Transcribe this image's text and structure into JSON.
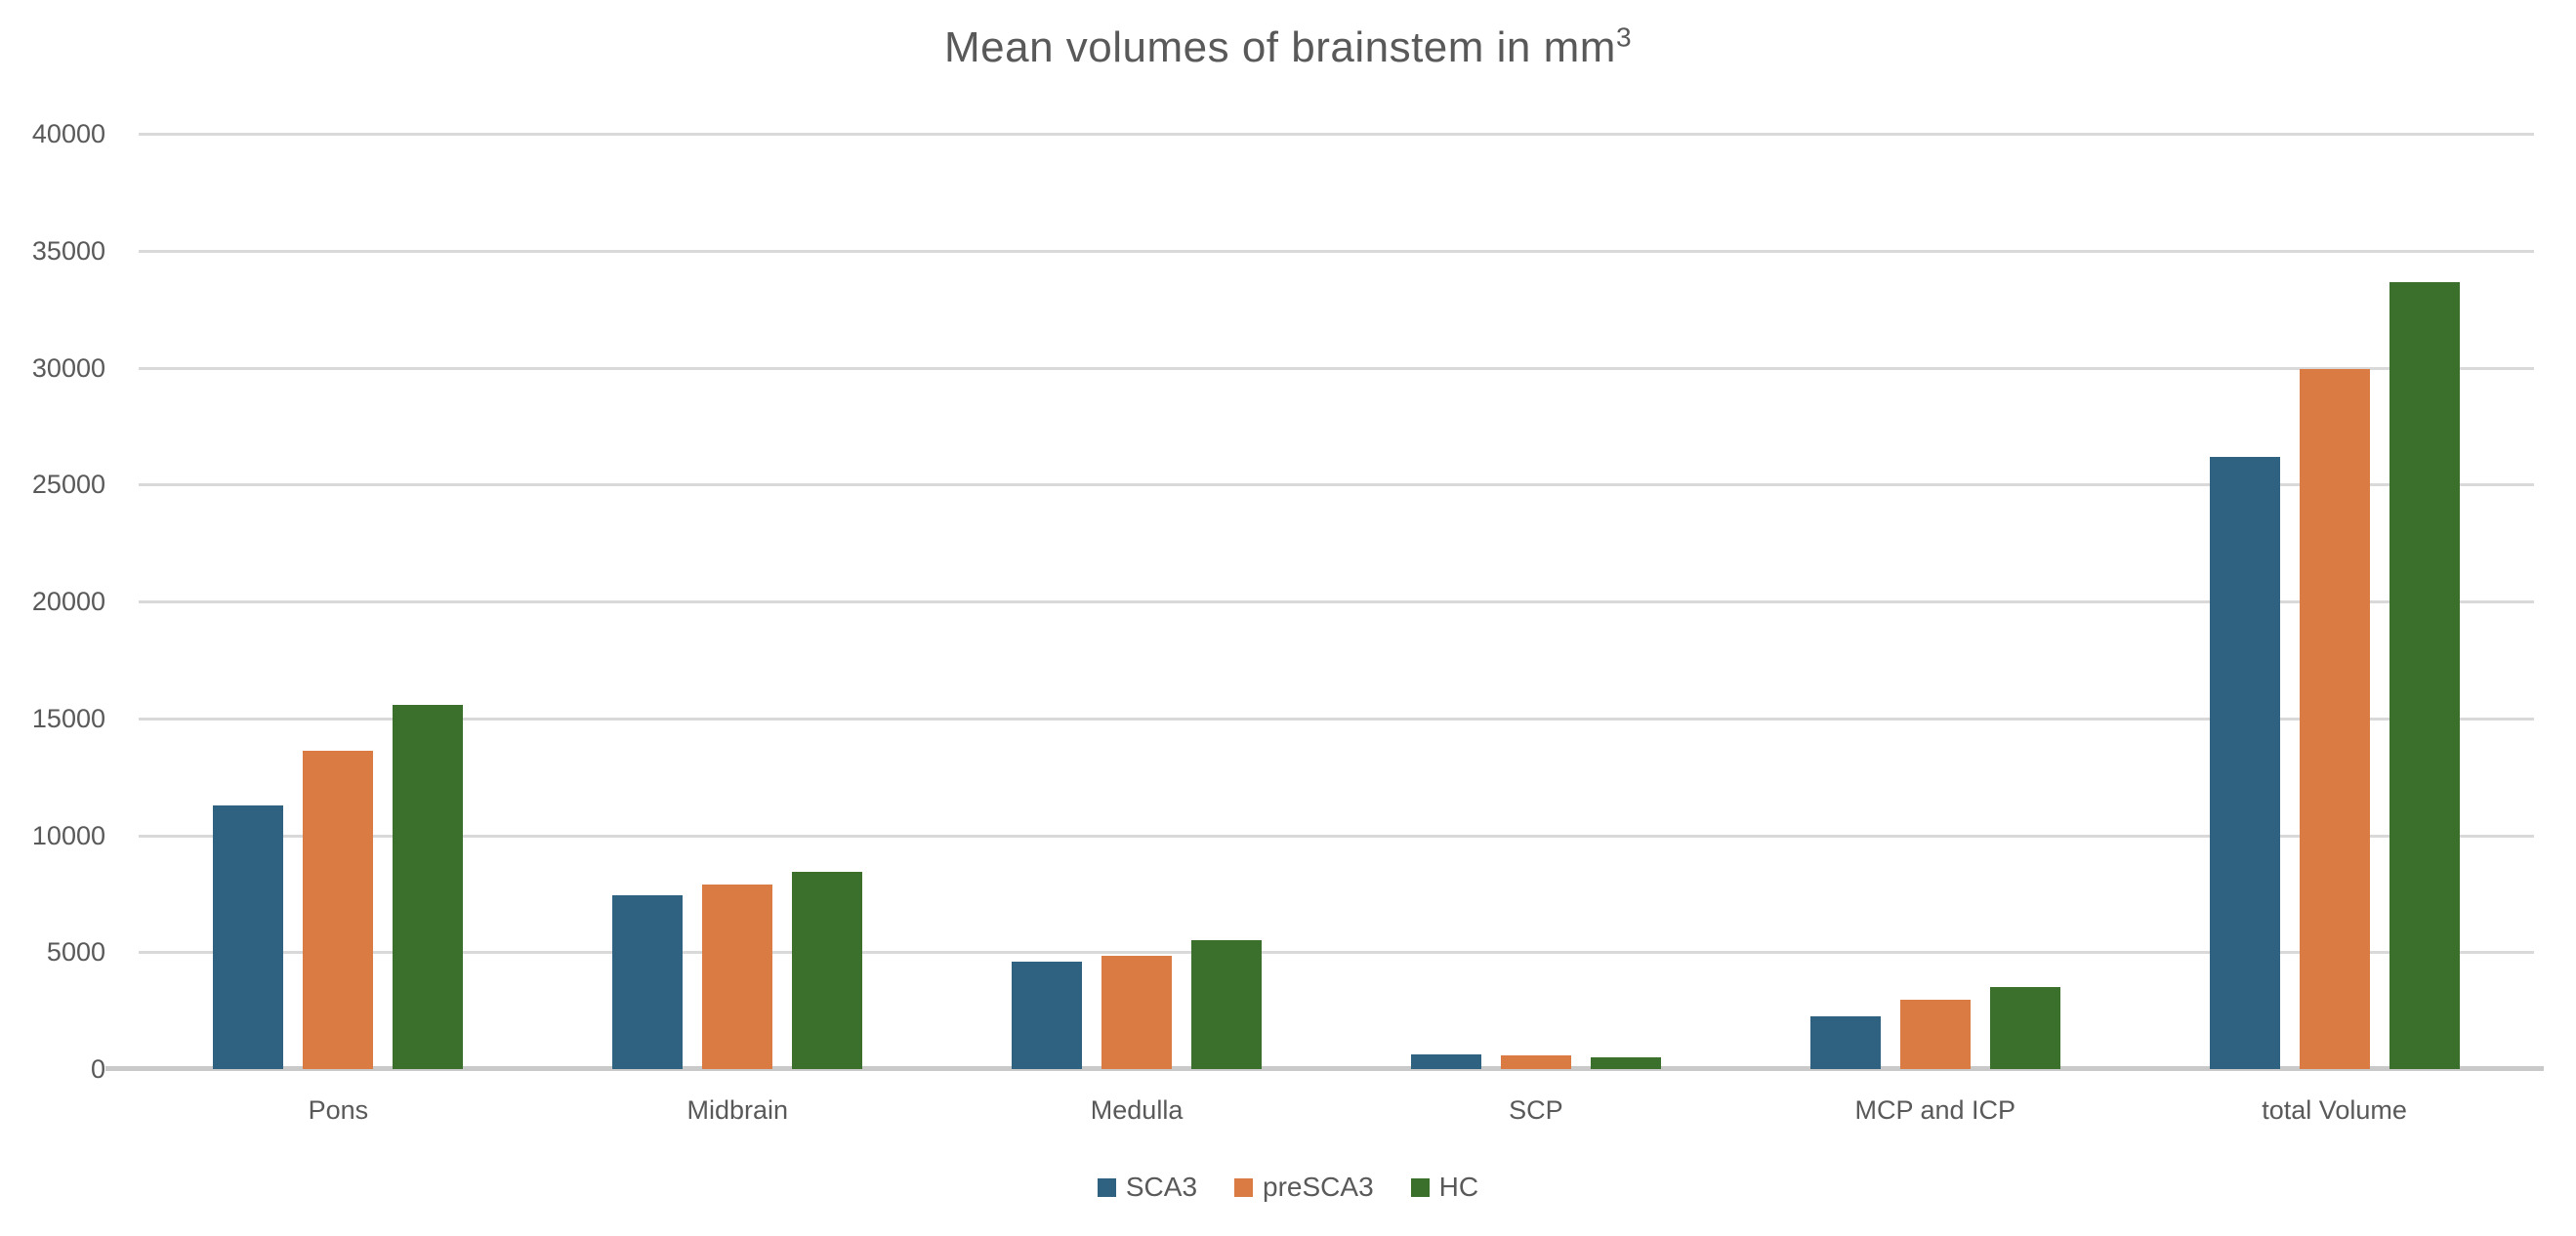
{
  "chart_data": {
    "type": "bar",
    "title": "Mean volumes of brainstem in mm³",
    "title_prefix": "Mean volumes of brainstem in mm",
    "title_superscript": "3",
    "categories": [
      "Pons",
      "Midbrain",
      "Medulla",
      "SCP",
      "MCP and ICP",
      "total Volume"
    ],
    "series": [
      {
        "name": "SCA3",
        "color": "#2e6280",
        "values": [
          11270,
          7440,
          4590,
          630,
          2270,
          26200
        ]
      },
      {
        "name": "preSCA3",
        "color": "#d97b42",
        "values": [
          13610,
          7900,
          4840,
          580,
          2950,
          29950
        ]
      },
      {
        "name": "HC",
        "color": "#3a702c",
        "values": [
          15570,
          8440,
          5520,
          515,
          3500,
          33650
        ]
      }
    ],
    "xlabel": "",
    "ylabel": "",
    "ylim": [
      0,
      40000
    ],
    "ytick_step": 5000,
    "ytick_labels": [
      "0",
      "5000",
      "10000",
      "15000",
      "20000",
      "25000",
      "30000",
      "35000",
      "40000"
    ],
    "grid": true,
    "legend_position": "bottom"
  },
  "styles": {
    "background": "#ffffff",
    "grid_color": "#d9d9d9",
    "axis_color": "#c9c9c9",
    "text_color": "#595959"
  }
}
